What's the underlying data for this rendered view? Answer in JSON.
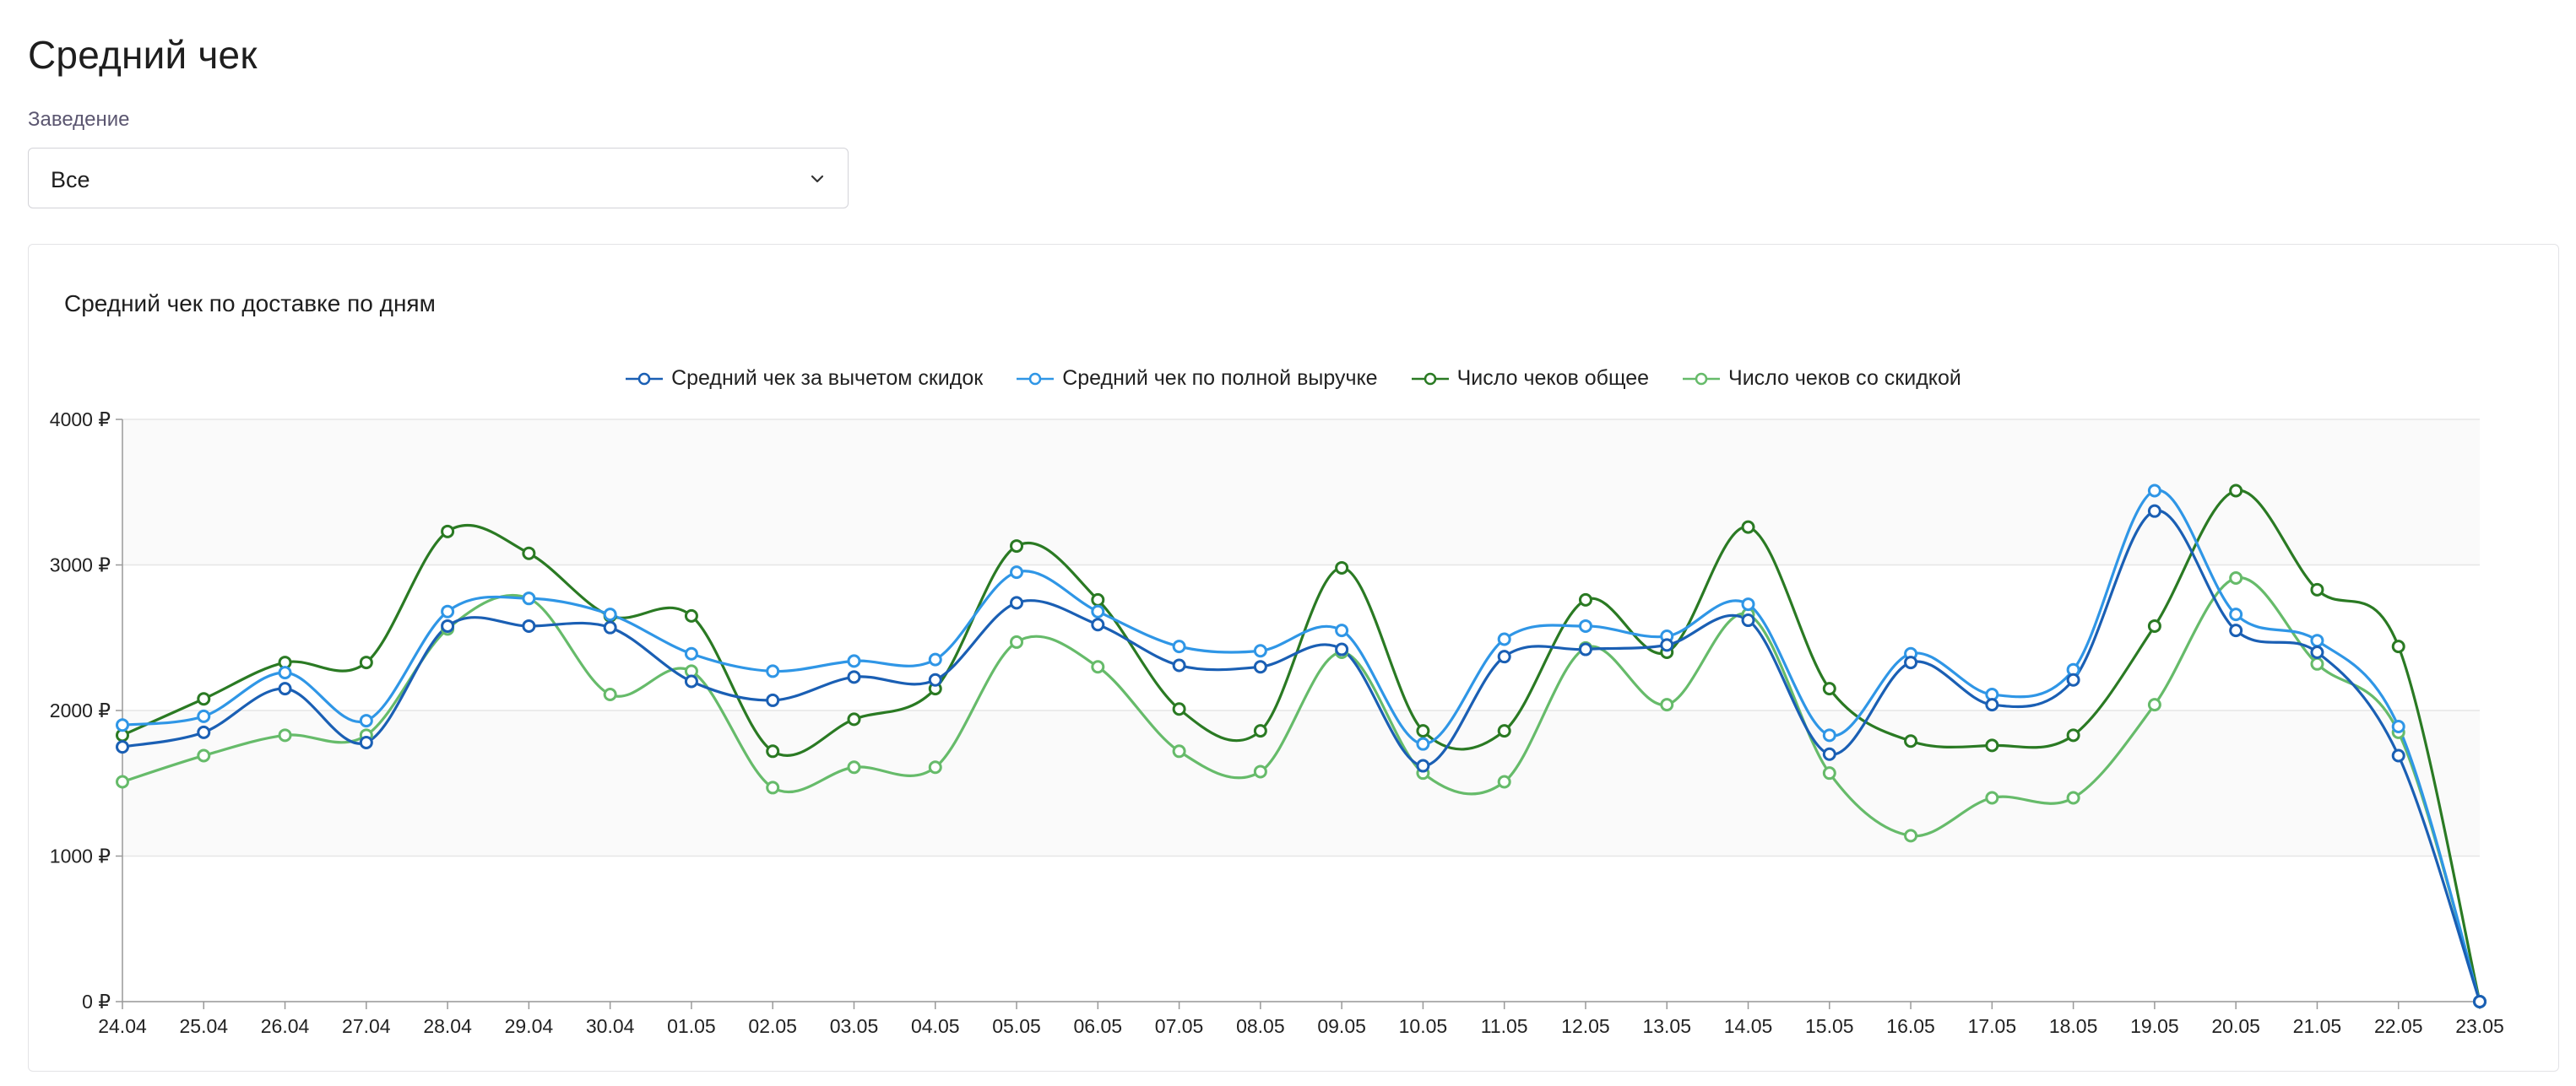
{
  "page": {
    "title": "Средний чек",
    "filter_label": "Заведение",
    "filter_value": "Все",
    "chevron_icon": "chevron-down-icon"
  },
  "card": {
    "title": "Средний чек по доставке по дням"
  },
  "colors": {
    "series1": "#1a5fb4",
    "series2": "#2f96e6",
    "series3": "#2a7a23",
    "series4": "#66bb6a",
    "grid": "#e6e6e6",
    "band": "#fafafa",
    "axis": "#999999"
  },
  "chart_data": {
    "type": "line",
    "title": "Средний чек по доставке по дням",
    "x": [
      "24.04",
      "25.04",
      "26.04",
      "27.04",
      "28.04",
      "29.04",
      "30.04",
      "01.05",
      "02.05",
      "03.05",
      "04.05",
      "05.05",
      "06.05",
      "07.05",
      "08.05",
      "09.05",
      "10.05",
      "11.05",
      "12.05",
      "13.05",
      "14.05",
      "15.05",
      "16.05",
      "17.05",
      "18.05",
      "19.05",
      "20.05",
      "21.05",
      "22.05",
      "23.05"
    ],
    "ylim": [
      0,
      4000
    ],
    "yticks": [
      0,
      1000,
      2000,
      3000,
      4000
    ],
    "ytick_labels": [
      "0 ₽",
      "1000 ₽",
      "2000 ₽",
      "3000 ₽",
      "4000 ₽"
    ],
    "grid": true,
    "legend_position": "top-center",
    "series": [
      {
        "name": "Средний чек за вычетом скидок",
        "values": [
          1750,
          1850,
          2150,
          1780,
          2580,
          2580,
          2570,
          2200,
          2070,
          2230,
          2210,
          2740,
          2590,
          2310,
          2300,
          2420,
          1620,
          2370,
          2420,
          2450,
          2620,
          1700,
          2330,
          2040,
          2210,
          3370,
          2550,
          2400,
          1690,
          0
        ]
      },
      {
        "name": "Средний чек по полной выручке",
        "values": [
          1900,
          1960,
          2260,
          1930,
          2680,
          2770,
          2660,
          2390,
          2270,
          2340,
          2350,
          2950,
          2680,
          2440,
          2410,
          2550,
          1770,
          2490,
          2580,
          2510,
          2730,
          1830,
          2390,
          2110,
          2280,
          3510,
          2660,
          2480,
          1890,
          0
        ]
      },
      {
        "name": "Число чеков общее",
        "values": [
          1830,
          2080,
          2330,
          2330,
          3230,
          3080,
          2650,
          2650,
          1720,
          1940,
          2150,
          3130,
          2760,
          2010,
          1860,
          2980,
          1860,
          1860,
          2760,
          2400,
          3260,
          2150,
          1790,
          1760,
          1830,
          2580,
          3510,
          2830,
          2440,
          0
        ]
      },
      {
        "name": "Число чеков со скидкой",
        "values": [
          1510,
          1690,
          1830,
          1830,
          2560,
          2770,
          2110,
          2270,
          1470,
          1610,
          1610,
          2470,
          2300,
          1720,
          1580,
          2400,
          1570,
          1510,
          2430,
          2040,
          2660,
          1570,
          1140,
          1400,
          1400,
          2040,
          2910,
          2320,
          1850,
          0
        ]
      }
    ]
  }
}
